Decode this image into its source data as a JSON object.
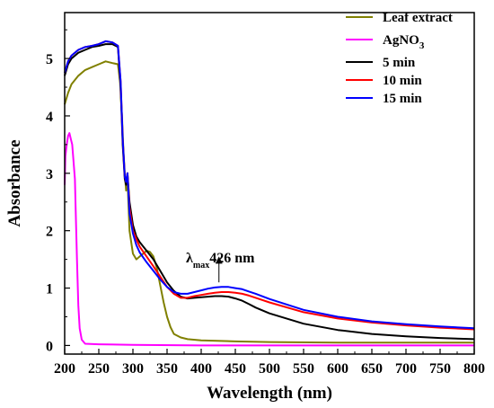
{
  "chart_data": {
    "type": "line",
    "title": "",
    "xlabel": "Wavelength (nm)",
    "ylabel": "Absorbance",
    "xlim": [
      200,
      800
    ],
    "ylim": [
      -0.15,
      5.8
    ],
    "xticks": [
      200,
      250,
      300,
      350,
      400,
      450,
      500,
      550,
      600,
      650,
      700,
      750,
      800
    ],
    "yticks": [
      0,
      1,
      2,
      3,
      4,
      5
    ],
    "grid": false,
    "legend_position": "top-right",
    "annotation": {
      "lambda": "λ",
      "sub": "max",
      "text": "426 nm",
      "x": 426,
      "y": 1.6,
      "arrow_from": 1.55,
      "arrow_to": 1.1
    },
    "series": [
      {
        "name": "Leaf extract",
        "legend_name": "Leaf extract",
        "color": "#808000",
        "points": [
          [
            200,
            4.2
          ],
          [
            205,
            4.4
          ],
          [
            210,
            4.55
          ],
          [
            220,
            4.7
          ],
          [
            230,
            4.8
          ],
          [
            240,
            4.85
          ],
          [
            250,
            4.9
          ],
          [
            260,
            4.95
          ],
          [
            270,
            4.92
          ],
          [
            278,
            4.9
          ],
          [
            281,
            4.6
          ],
          [
            284,
            4.0
          ],
          [
            286,
            3.4
          ],
          [
            288,
            3.0
          ],
          [
            290,
            2.7
          ],
          [
            292,
            2.9
          ],
          [
            295,
            2.0
          ],
          [
            300,
            1.6
          ],
          [
            305,
            1.5
          ],
          [
            310,
            1.55
          ],
          [
            315,
            1.6
          ],
          [
            320,
            1.65
          ],
          [
            325,
            1.63
          ],
          [
            330,
            1.55
          ],
          [
            335,
            1.35
          ],
          [
            340,
            1.05
          ],
          [
            345,
            0.75
          ],
          [
            350,
            0.5
          ],
          [
            355,
            0.32
          ],
          [
            360,
            0.2
          ],
          [
            370,
            0.14
          ],
          [
            380,
            0.11
          ],
          [
            400,
            0.09
          ],
          [
            450,
            0.07
          ],
          [
            500,
            0.06
          ],
          [
            600,
            0.05
          ],
          [
            700,
            0.05
          ],
          [
            800,
            0.05
          ]
        ]
      },
      {
        "name": "AgNO3",
        "legend_main": "AgNO",
        "legend_sub": "3",
        "color": "#ff00ff",
        "points": [
          [
            200,
            2.8
          ],
          [
            201,
            3.3
          ],
          [
            203,
            3.5
          ],
          [
            205,
            3.65
          ],
          [
            207,
            3.7
          ],
          [
            209,
            3.6
          ],
          [
            211,
            3.5
          ],
          [
            213,
            3.2
          ],
          [
            215,
            2.9
          ],
          [
            216,
            2.4
          ],
          [
            218,
            1.5
          ],
          [
            220,
            0.7
          ],
          [
            222,
            0.3
          ],
          [
            225,
            0.1
          ],
          [
            230,
            0.03
          ],
          [
            250,
            0.02
          ],
          [
            300,
            0.01
          ],
          [
            400,
            0.0
          ],
          [
            500,
            0.0
          ],
          [
            600,
            0.0
          ],
          [
            700,
            0.0
          ],
          [
            800,
            0.0
          ]
        ]
      },
      {
        "name": "5 min",
        "legend_name": "5  min",
        "color": "#000000",
        "points": [
          [
            200,
            4.7
          ],
          [
            205,
            4.9
          ],
          [
            210,
            5.0
          ],
          [
            220,
            5.1
          ],
          [
            230,
            5.15
          ],
          [
            240,
            5.2
          ],
          [
            250,
            5.22
          ],
          [
            260,
            5.25
          ],
          [
            270,
            5.25
          ],
          [
            278,
            5.2
          ],
          [
            282,
            4.5
          ],
          [
            285,
            3.5
          ],
          [
            288,
            2.9
          ],
          [
            290,
            2.8
          ],
          [
            292,
            3.0
          ],
          [
            295,
            2.5
          ],
          [
            300,
            2.1
          ],
          [
            305,
            1.9
          ],
          [
            310,
            1.8
          ],
          [
            320,
            1.65
          ],
          [
            330,
            1.5
          ],
          [
            340,
            1.3
          ],
          [
            350,
            1.1
          ],
          [
            360,
            0.95
          ],
          [
            370,
            0.85
          ],
          [
            380,
            0.82
          ],
          [
            390,
            0.83
          ],
          [
            400,
            0.84
          ],
          [
            410,
            0.85
          ],
          [
            420,
            0.86
          ],
          [
            430,
            0.86
          ],
          [
            440,
            0.85
          ],
          [
            450,
            0.82
          ],
          [
            460,
            0.78
          ],
          [
            470,
            0.72
          ],
          [
            480,
            0.66
          ],
          [
            500,
            0.56
          ],
          [
            550,
            0.38
          ],
          [
            600,
            0.27
          ],
          [
            650,
            0.2
          ],
          [
            700,
            0.16
          ],
          [
            750,
            0.13
          ],
          [
            800,
            0.11
          ]
        ]
      },
      {
        "name": "10 min",
        "legend_name": "10 min",
        "color": "#ff0000",
        "points": [
          [
            200,
            4.75
          ],
          [
            205,
            4.95
          ],
          [
            210,
            5.05
          ],
          [
            220,
            5.15
          ],
          [
            230,
            5.2
          ],
          [
            240,
            5.22
          ],
          [
            250,
            5.25
          ],
          [
            260,
            5.3
          ],
          [
            270,
            5.28
          ],
          [
            278,
            5.22
          ],
          [
            282,
            4.6
          ],
          [
            285,
            3.6
          ],
          [
            288,
            2.95
          ],
          [
            290,
            2.85
          ],
          [
            292,
            3.0
          ],
          [
            295,
            2.4
          ],
          [
            300,
            2.0
          ],
          [
            305,
            1.85
          ],
          [
            310,
            1.72
          ],
          [
            320,
            1.55
          ],
          [
            330,
            1.38
          ],
          [
            340,
            1.2
          ],
          [
            350,
            1.02
          ],
          [
            360,
            0.9
          ],
          [
            370,
            0.83
          ],
          [
            380,
            0.83
          ],
          [
            390,
            0.86
          ],
          [
            400,
            0.88
          ],
          [
            410,
            0.9
          ],
          [
            420,
            0.92
          ],
          [
            430,
            0.93
          ],
          [
            440,
            0.93
          ],
          [
            450,
            0.92
          ],
          [
            460,
            0.9
          ],
          [
            470,
            0.87
          ],
          [
            480,
            0.83
          ],
          [
            500,
            0.75
          ],
          [
            550,
            0.58
          ],
          [
            600,
            0.47
          ],
          [
            650,
            0.4
          ],
          [
            700,
            0.35
          ],
          [
            750,
            0.31
          ],
          [
            800,
            0.28
          ]
        ]
      },
      {
        "name": "15 min",
        "legend_name": "15 min",
        "color": "#0000ff",
        "points": [
          [
            200,
            4.75
          ],
          [
            205,
            4.95
          ],
          [
            210,
            5.05
          ],
          [
            220,
            5.15
          ],
          [
            230,
            5.2
          ],
          [
            240,
            5.22
          ],
          [
            250,
            5.25
          ],
          [
            260,
            5.3
          ],
          [
            270,
            5.28
          ],
          [
            278,
            5.22
          ],
          [
            282,
            4.6
          ],
          [
            285,
            3.6
          ],
          [
            288,
            2.95
          ],
          [
            290,
            2.85
          ],
          [
            292,
            3.0
          ],
          [
            295,
            2.3
          ],
          [
            300,
            1.95
          ],
          [
            305,
            1.75
          ],
          [
            310,
            1.62
          ],
          [
            320,
            1.45
          ],
          [
            330,
            1.3
          ],
          [
            340,
            1.15
          ],
          [
            350,
            1.02
          ],
          [
            360,
            0.93
          ],
          [
            370,
            0.9
          ],
          [
            380,
            0.9
          ],
          [
            390,
            0.93
          ],
          [
            400,
            0.96
          ],
          [
            410,
            0.99
          ],
          [
            420,
            1.01
          ],
          [
            430,
            1.02
          ],
          [
            440,
            1.02
          ],
          [
            450,
            1.0
          ],
          [
            460,
            0.98
          ],
          [
            470,
            0.94
          ],
          [
            480,
            0.9
          ],
          [
            500,
            0.81
          ],
          [
            550,
            0.62
          ],
          [
            600,
            0.5
          ],
          [
            650,
            0.42
          ],
          [
            700,
            0.37
          ],
          [
            750,
            0.33
          ],
          [
            800,
            0.3
          ]
        ]
      }
    ]
  }
}
